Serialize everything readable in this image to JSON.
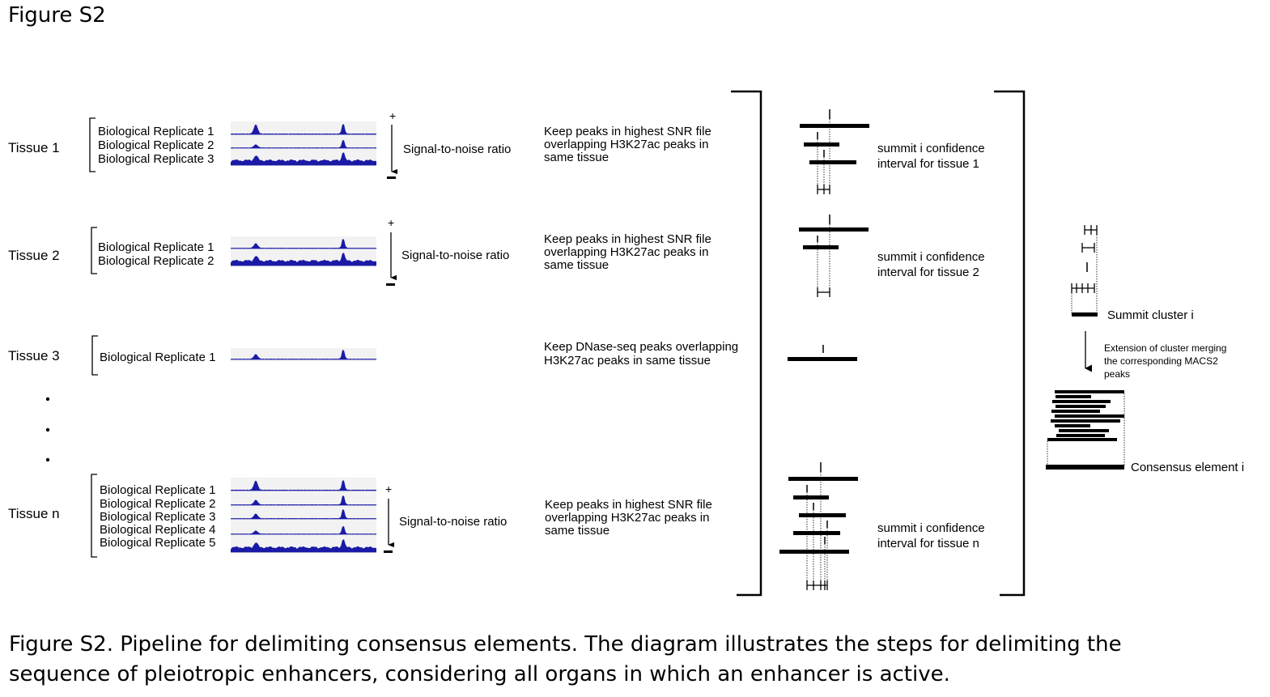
{
  "figure_title": "Figure S2",
  "tissues": [
    {
      "name": "Tissue 1",
      "replicates": [
        "Biological Replicate 1",
        "Biological Replicate 2",
        "Biological Replicate 3"
      ],
      "snr_label": "Signal-to-noise ratio",
      "plus": "+",
      "minus": "−",
      "step": [
        "Keep peaks in highest SNR file",
        "overlapping H3K27ac peaks in",
        "same tissue"
      ],
      "ci": [
        "summit i confidence",
        "interval for tissue 1"
      ]
    },
    {
      "name": "Tissue 2",
      "replicates": [
        "Biological Replicate 1",
        "Biological Replicate 2"
      ],
      "snr_label": "Signal-to-noise ratio",
      "plus": "+",
      "minus": "−",
      "step": [
        "Keep peaks in highest SNR file",
        "overlapping H3K27ac peaks in",
        "same tissue"
      ],
      "ci": [
        "summit i confidence",
        "interval for tissue 2"
      ]
    },
    {
      "name": "Tissue 3",
      "replicates": [
        "Biological Replicate 1"
      ],
      "step": [
        "Keep DNase-seq peaks overlapping",
        "H3K27ac peaks in same tissue"
      ]
    },
    {
      "name": "Tissue n",
      "replicates": [
        "Biological Replicate 1",
        "Biological Replicate 2",
        "Biological Replicate 3",
        "Biological Replicate 4",
        "Biological Replicate 5"
      ],
      "snr_label": "Signal-to-noise ratio",
      "plus": "+",
      "minus": "−",
      "step": [
        "Keep peaks in highest SNR file",
        "overlapping H3K27ac peaks in",
        "same tissue"
      ],
      "ci": [
        "summit i confidence",
        "interval for tissue n"
      ]
    }
  ],
  "summit_cluster_label": "Summit cluster i",
  "extension_text": [
    "Extension of cluster merging",
    "the corresponding MACS2",
    "peaks"
  ],
  "consensus_label": "Consensus element i",
  "caption": [
    "Figure S2. Pipeline for delimiting consensus elements. The diagram illustrates the steps for delimiting the",
    "sequence of pleiotropic enhancers, considering all organs in which an enhancer is active."
  ],
  "colors": {
    "track_fill": "#1a1aa6",
    "track_bg": "#f2f2f2",
    "ink": "#000000"
  }
}
